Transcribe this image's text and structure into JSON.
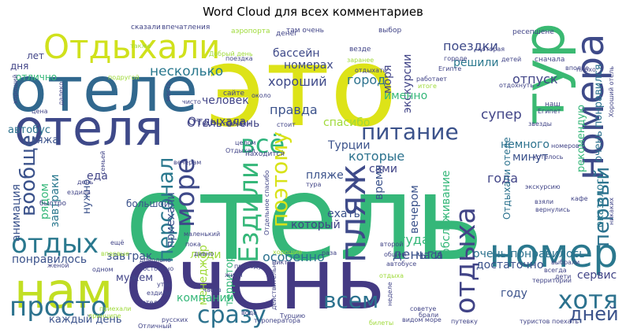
{
  "chart_data": {
    "type": "wordcloud",
    "title": "Word Cloud для всех комментариев",
    "words": [
      {
        "text": "отель",
        "color": "#35b779"
      },
      {
        "text": "очень",
        "color": "#443a83"
      },
      {
        "text": "это",
        "color": "#dde318"
      },
      {
        "text": "отеле",
        "color": "#31688e"
      },
      {
        "text": "нам",
        "color": "#c2df23"
      },
      {
        "text": "отеля",
        "color": "#3e4989"
      },
      {
        "text": "тур",
        "color": "#3ab972"
      },
      {
        "text": "номер",
        "color": "#2a788e"
      },
      {
        "text": "номера",
        "color": "#3e4a89"
      },
      {
        "text": "Отдыхали",
        "color": "#d0e11c"
      },
      {
        "text": "просто",
        "color": "#2c728e"
      },
      {
        "text": "всё",
        "color": "#2eb37c"
      },
      {
        "text": "пляж",
        "color": "#3e4a89"
      },
      {
        "text": "отдых",
        "color": "#2a788e"
      },
      {
        "text": "питание",
        "color": "#3b528b"
      },
      {
        "text": "отдыха",
        "color": "#414487"
      },
      {
        "text": "море",
        "color": "#3e4989"
      },
      {
        "text": "персонал",
        "color": "#2a788e"
      },
      {
        "text": "Ездили",
        "color": "#35b779"
      },
      {
        "text": "поэтому",
        "color": "#d8e219"
      },
      {
        "text": "хотя",
        "color": "#2c728e"
      },
      {
        "text": "сразу",
        "color": "#2c728e"
      },
      {
        "text": "всем",
        "color": "#2c728e"
      },
      {
        "text": "дней",
        "color": "#3b528b"
      },
      {
        "text": "первый",
        "color": "#2c728e"
      },
      {
        "text": "вообще",
        "color": "#3b528b"
      },
      {
        "text": "поездки",
        "color": "#3e4a89"
      },
      {
        "text": "несколько",
        "color": "#2a788e"
      },
      {
        "text": "хороший",
        "color": "#3e4989"
      },
      {
        "text": "человек",
        "color": "#414487"
      },
      {
        "text": "бассейн",
        "color": "#3e4989"
      },
      {
        "text": "номерах",
        "color": "#3e4989"
      },
      {
        "text": "город",
        "color": "#2c728e"
      },
      {
        "text": "правда",
        "color": "#3b528b"
      },
      {
        "text": "отпуск",
        "color": "#414487"
      },
      {
        "text": "решили",
        "color": "#2a788e"
      },
      {
        "text": "спасибо",
        "color": "#9fda3a"
      },
      {
        "text": "Турции",
        "color": "#3b528b"
      },
      {
        "text": "супер",
        "color": "#414487"
      },
      {
        "text": "немного",
        "color": "#2c728e"
      },
      {
        "text": "минут",
        "color": "#3b528b"
      },
      {
        "text": "Отель очень",
        "color": "#414487"
      },
      {
        "text": "которые",
        "color": "#2c728e"
      },
      {
        "text": "сами",
        "color": "#414487"
      },
      {
        "text": "пляже",
        "color": "#3b528b"
      },
      {
        "text": "года",
        "color": "#414487"
      },
      {
        "text": "ехать",
        "color": "#3b528b"
      },
      {
        "text": "который",
        "color": "#414487"
      },
      {
        "text": "время",
        "color": "#3b528b"
      },
      {
        "text": "вечером",
        "color": "#3b528b"
      },
      {
        "text": "обслуживание",
        "color": "#35b779"
      },
      {
        "text": "туда",
        "color": "#35b779"
      },
      {
        "text": "деньги",
        "color": "#3b528b"
      },
      {
        "text": "особенно",
        "color": "#2c728e"
      },
      {
        "text": "очень понравилось",
        "color": "#2c728e"
      },
      {
        "text": "завтрак",
        "color": "#3b528b"
      },
      {
        "text": "люди",
        "color": "#9fda3a"
      },
      {
        "text": "приехали",
        "color": "#3b528b"
      },
      {
        "text": "большой",
        "color": "#3b528b"
      },
      {
        "text": "еда",
        "color": "#414487"
      },
      {
        "text": "нужно",
        "color": "#3b528b"
      },
      {
        "text": "территории",
        "color": "#35b779"
      },
      {
        "text": "менеджер",
        "color": "#9fda3a"
      },
      {
        "text": "компании",
        "color": "#35b779"
      },
      {
        "text": "мужем",
        "color": "#414487"
      },
      {
        "text": "понравилось",
        "color": "#3b528b"
      },
      {
        "text": "каждый день",
        "color": "#3b528b"
      },
      {
        "text": "сервис",
        "color": "#414487"
      },
      {
        "text": "часа",
        "color": "#3b528b"
      },
      {
        "text": "достаточно",
        "color": "#3b528b"
      },
      {
        "text": "году",
        "color": "#3b528b"
      },
      {
        "text": "анимация",
        "color": "#3b528b"
      },
      {
        "text": "завтраки",
        "color": "#2a788e"
      },
      {
        "text": "рядом",
        "color": "#35b779"
      },
      {
        "text": "автобус",
        "color": "#2c728e"
      },
      {
        "text": "пляжа",
        "color": "#3b528b"
      },
      {
        "text": "Отдыхала",
        "color": "#414487"
      },
      {
        "text": "рекомендую",
        "color": "#35b779"
      },
      {
        "text": "очень понравился",
        "color": "#2c728e"
      },
      {
        "text": "оказалось",
        "color": "#2a788e"
      },
      {
        "text": "Отдыхали отеле",
        "color": "#2c728e"
      },
      {
        "text": "экскурсии",
        "color": "#414487"
      },
      {
        "text": "именно",
        "color": "#35b779"
      },
      {
        "text": "моря",
        "color": "#414487"
      },
      {
        "text": "дня",
        "color": "#414487"
      },
      {
        "text": "отлично",
        "color": "#35b779"
      },
      {
        "text": "лет",
        "color": "#414487"
      },
      {
        "text": "впечатления",
        "color": "#414487"
      },
      {
        "text": "аэропорта",
        "color": "#9fda3a"
      },
      {
        "text": "сказали",
        "color": "#414487"
      },
      {
        "text": "там очень",
        "color": "#414487"
      },
      {
        "text": "выбор",
        "color": "#414487"
      },
      {
        "text": "ресепшене",
        "color": "#414487"
      },
      {
        "text": "плохо",
        "color": "#414487"
      },
      {
        "text": "сначала",
        "color": "#414487"
      },
      {
        "text": "денег",
        "color": "#414487"
      },
      {
        "text": "везде",
        "color": "#414487"
      },
      {
        "text": "также",
        "color": "#9fda3a"
      },
      {
        "text": "поездка",
        "color": "#414487"
      },
      {
        "text": "Добрый день",
        "color": "#9fda3a"
      },
      {
        "text": "заранее",
        "color": "#9fda3a"
      },
      {
        "text": "отдыхать",
        "color": "#414487"
      },
      {
        "text": "работает",
        "color": "#414487"
      },
      {
        "text": "Египте",
        "color": "#414487"
      },
      {
        "text": "детей",
        "color": "#414487"
      },
      {
        "text": "городе",
        "color": "#414487"
      },
      {
        "text": "которая",
        "color": "#414487"
      },
      {
        "text": "итоге",
        "color": "#9fda3a"
      },
      {
        "text": "отдохнуть",
        "color": "#414487"
      },
      {
        "text": "сайте",
        "color": "#414487"
      },
      {
        "text": "около",
        "color": "#414487"
      },
      {
        "text": "чисто",
        "color": "#414487"
      },
      {
        "text": "далеко",
        "color": "#414487"
      },
      {
        "text": "место",
        "color": "#414487"
      },
      {
        "text": "подругой",
        "color": "#9fda3a"
      },
      {
        "text": "быстро",
        "color": "#414487"
      },
      {
        "text": "хороший",
        "color": "#414487"
      },
      {
        "text": "поехали",
        "color": "#414487"
      },
      {
        "text": "стоит",
        "color": "#414487"
      },
      {
        "text": "цена",
        "color": "#414487"
      },
      {
        "text": "звезды",
        "color": "#414487"
      },
      {
        "text": "наш",
        "color": "#414487"
      },
      {
        "text": "Египет",
        "color": "#414487"
      },
      {
        "text": "Хороший отель",
        "color": "#414487"
      },
      {
        "text": "номеров",
        "color": "#414487"
      },
      {
        "text": "хотелось",
        "color": "#414487"
      },
      {
        "text": "находится",
        "color": "#414487"
      },
      {
        "text": "целом",
        "color": "#414487"
      },
      {
        "text": "Отдыхал",
        "color": "#414487"
      },
      {
        "text": "Отдельное спасибо",
        "color": "#414487"
      },
      {
        "text": "тура",
        "color": "#414487"
      },
      {
        "text": "экскурсию",
        "color": "#414487"
      },
      {
        "text": "взяли",
        "color": "#414487"
      },
      {
        "text": "кафе",
        "color": "#414487"
      },
      {
        "text": "ездила",
        "color": "#414487"
      },
      {
        "text": "маленький",
        "color": "#414487"
      },
      {
        "text": "пока",
        "color": "#414487"
      },
      {
        "text": "никаких",
        "color": "#414487"
      },
      {
        "text": "вернулись",
        "color": "#414487"
      },
      {
        "text": "хорошие",
        "color": "#9fda3a"
      },
      {
        "text": "раза",
        "color": "#414487"
      },
      {
        "text": "никто",
        "color": "#414487"
      },
      {
        "text": "второй",
        "color": "#414487"
      },
      {
        "text": "общем",
        "color": "#414487"
      },
      {
        "text": "автобусе",
        "color": "#414487"
      },
      {
        "text": "довольно",
        "color": "#414487"
      },
      {
        "text": "постоянно",
        "color": "#414487"
      },
      {
        "text": "приезду",
        "color": "#414487"
      },
      {
        "text": "жили",
        "color": "#414487"
      },
      {
        "text": "утра",
        "color": "#414487"
      },
      {
        "text": "часов",
        "color": "#414487"
      },
      {
        "text": "действительно",
        "color": "#414487"
      },
      {
        "text": "Турцию",
        "color": "#414487"
      },
      {
        "text": "туроператора",
        "color": "#414487"
      },
      {
        "text": "русских",
        "color": "#414487"
      },
      {
        "text": "вода",
        "color": "#414487"
      },
      {
        "text": "неделе",
        "color": "#414487"
      },
      {
        "text": "видом море",
        "color": "#414487"
      },
      {
        "text": "советуе",
        "color": "#414487"
      },
      {
        "text": "брали",
        "color": "#414487"
      },
      {
        "text": "путевку",
        "color": "#414487"
      },
      {
        "text": "туристов",
        "color": "#414487"
      },
      {
        "text": "поехать",
        "color": "#414487"
      },
      {
        "text": "билеты",
        "color": "#9fda3a"
      },
      {
        "text": "территории",
        "color": "#414487"
      },
      {
        "text": "выбрали",
        "color": "#414487"
      },
      {
        "text": "всегда",
        "color": "#414487"
      },
      {
        "text": "дети",
        "color": "#414487"
      },
      {
        "text": "впервые",
        "color": "#9fda3a"
      },
      {
        "text": "ещё",
        "color": "#414487"
      },
      {
        "text": "отеля",
        "color": "#414487"
      },
      {
        "text": "ездили",
        "color": "#414487"
      },
      {
        "text": "принципе",
        "color": "#9fda3a"
      },
      {
        "text": "приехали",
        "color": "#9fda3a"
      },
      {
        "text": "семьей",
        "color": "#414487"
      },
      {
        "text": "день",
        "color": "#414487"
      },
      {
        "text": "женой",
        "color": "#414487"
      },
      {
        "text": "одном",
        "color": "#414487"
      },
      {
        "text": "вечерам",
        "color": "#414487"
      },
      {
        "text": "вполне",
        "color": "#414487"
      },
      {
        "text": "давно",
        "color": "#414487"
      },
      {
        "text": "отдыха",
        "color": "#9fda3a"
      },
      {
        "text": "Отличный",
        "color": "#414487"
      }
    ]
  }
}
